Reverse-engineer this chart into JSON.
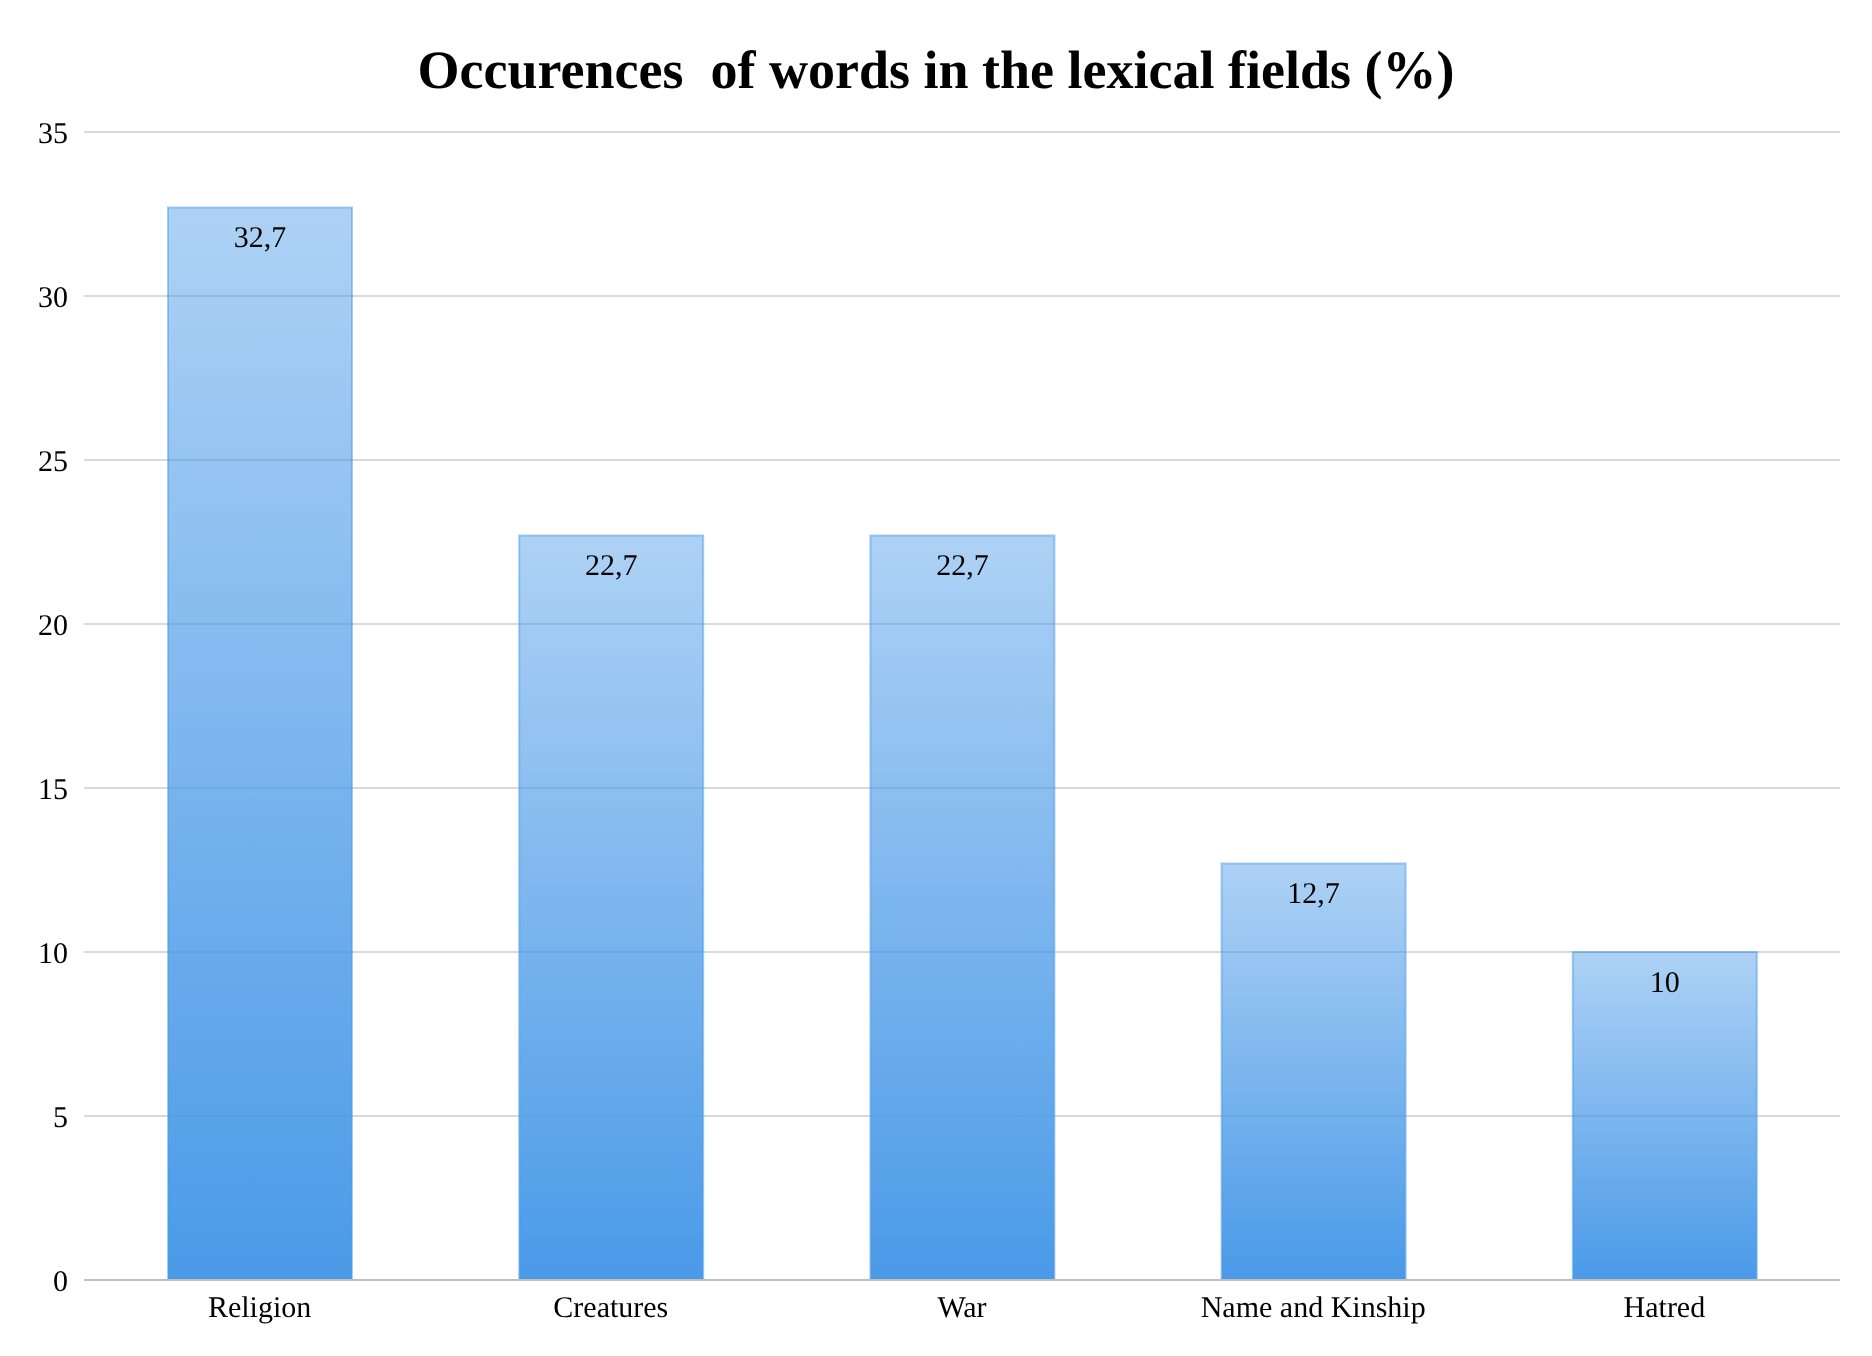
{
  "chart_data": {
    "type": "bar",
    "title": "Occurences  of words in the lexical fields (%)",
    "categories": [
      "Religion",
      "Creatures",
      "War",
      "Name and Kinship",
      "Hatred"
    ],
    "values": [
      32.7,
      22.7,
      22.7,
      12.7,
      10
    ],
    "value_labels": [
      "32,7",
      "22,7",
      "22,7",
      "12,7",
      "10"
    ],
    "color": "#4a9ae8",
    "ylim": [
      0,
      35
    ],
    "yticks": [
      0,
      5,
      10,
      15,
      20,
      25,
      30,
      35
    ],
    "grid": "y",
    "legend": false
  }
}
